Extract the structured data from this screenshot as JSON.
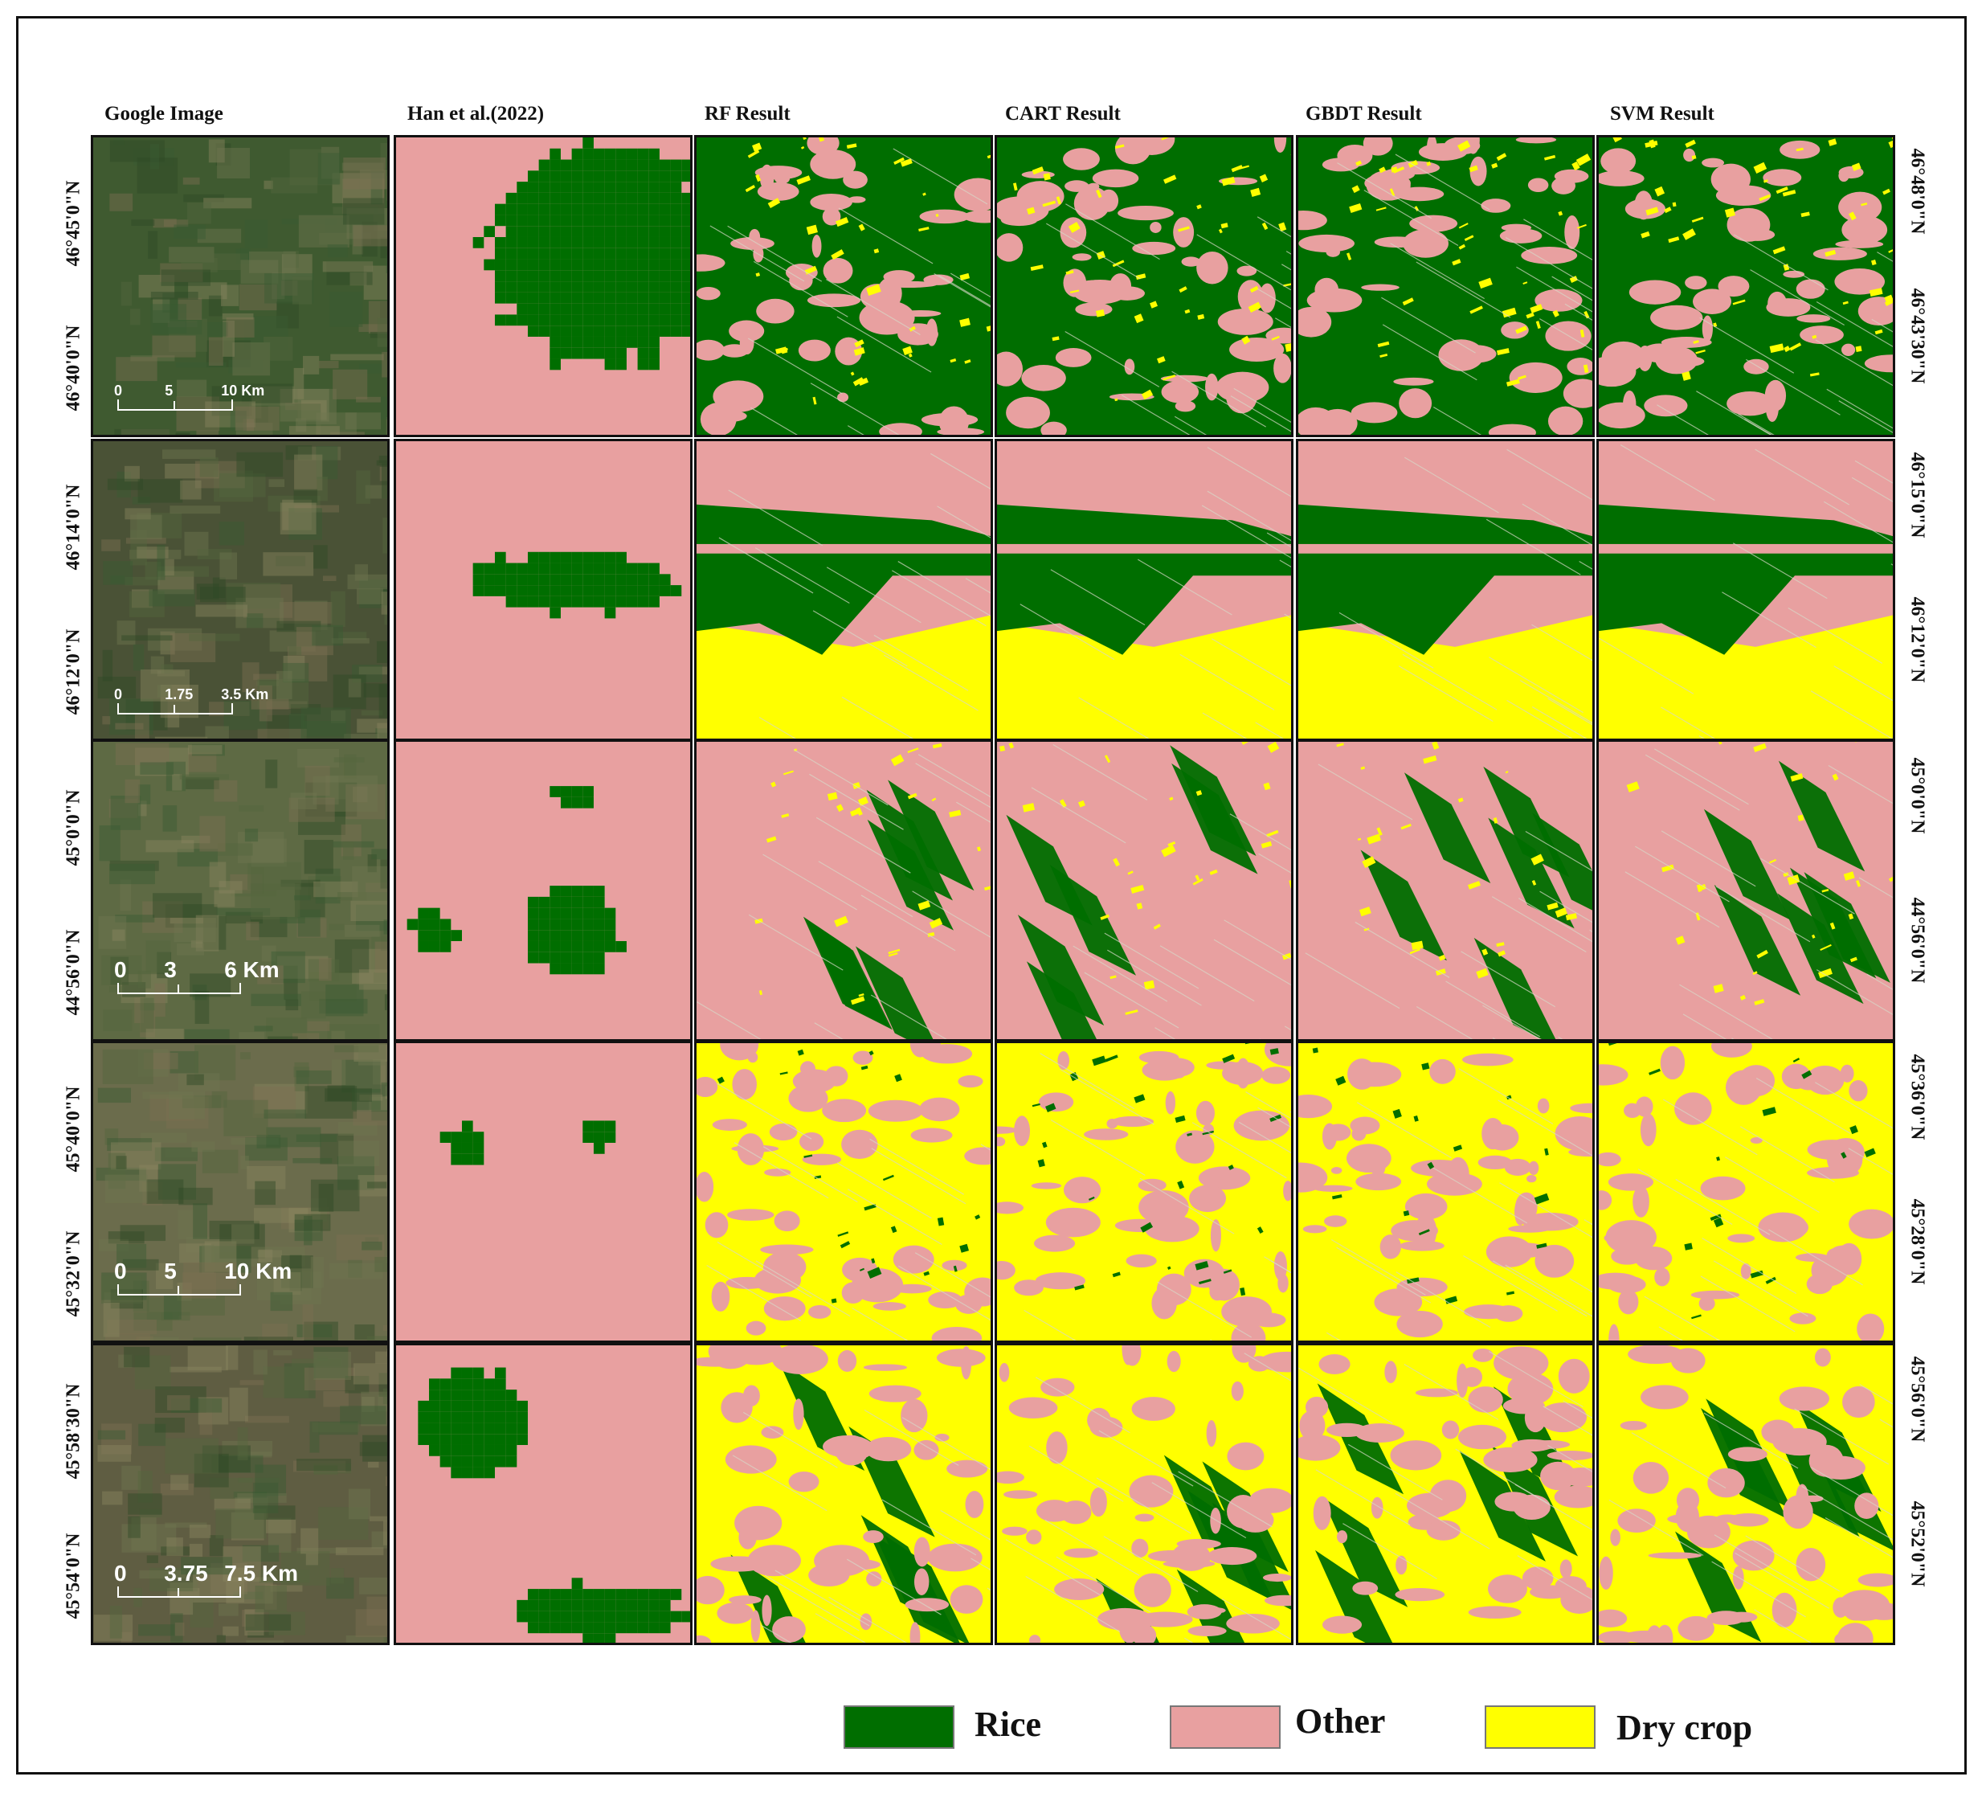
{
  "columns": [
    {
      "key": "google",
      "title": "Google Image"
    },
    {
      "key": "han",
      "title": "Han et al.(2022)"
    },
    {
      "key": "rf",
      "title": "RF Result"
    },
    {
      "key": "cart",
      "title": "CART Result"
    },
    {
      "key": "gbdt",
      "title": "GBDT Result"
    },
    {
      "key": "svm",
      "title": "SVM Result"
    }
  ],
  "rows": [
    {
      "lat_left": [
        "46°45'0\"N",
        "46°40'0\"N"
      ],
      "lat_right": [
        "46°48'0\"N",
        "46°43'30\"N"
      ],
      "scale": {
        "labels": [
          "0",
          "5",
          "10 Km"
        ]
      }
    },
    {
      "lat_left": [
        "46°14'0\"N",
        "46°12'0\"N"
      ],
      "lat_right": [
        "46°15'0\"N",
        "46°12'0\"N"
      ],
      "scale": {
        "labels": [
          "0",
          "1.75",
          "3.5 Km"
        ]
      }
    },
    {
      "lat_left": [
        "45°0'0\"N",
        "44°56'0\"N"
      ],
      "lat_right": [
        "45°0'0\"N",
        "44°56'0\"N"
      ],
      "scale": {
        "labels": [
          "0",
          "3",
          "6 Km"
        ]
      }
    },
    {
      "lat_left": [
        "45°40'0\"N",
        "45°32'0\"N"
      ],
      "lat_right": [
        "45°36'0\"N",
        "45°28'0\"N"
      ],
      "scale": {
        "labels": [
          "0",
          "5",
          "10 Km"
        ]
      }
    },
    {
      "lat_left": [
        "45°58'30\"N",
        "45°54'0\"N"
      ],
      "lat_right": [
        "45°56'0\"N",
        "45°52'0\"N"
      ],
      "scale": {
        "labels": [
          "0",
          "3.75",
          "7.5 Km"
        ]
      }
    }
  ],
  "legend": [
    {
      "label": "Rice",
      "color": "#006E00"
    },
    {
      "label": "Other",
      "color": "#E8A0A0"
    },
    {
      "label": "Dry crop",
      "color": "#FFFF00"
    }
  ],
  "colors": {
    "rice": "#006E00",
    "other": "#E8A0A0",
    "dry": "#FFFF00",
    "satellite": "#4a5a38"
  }
}
